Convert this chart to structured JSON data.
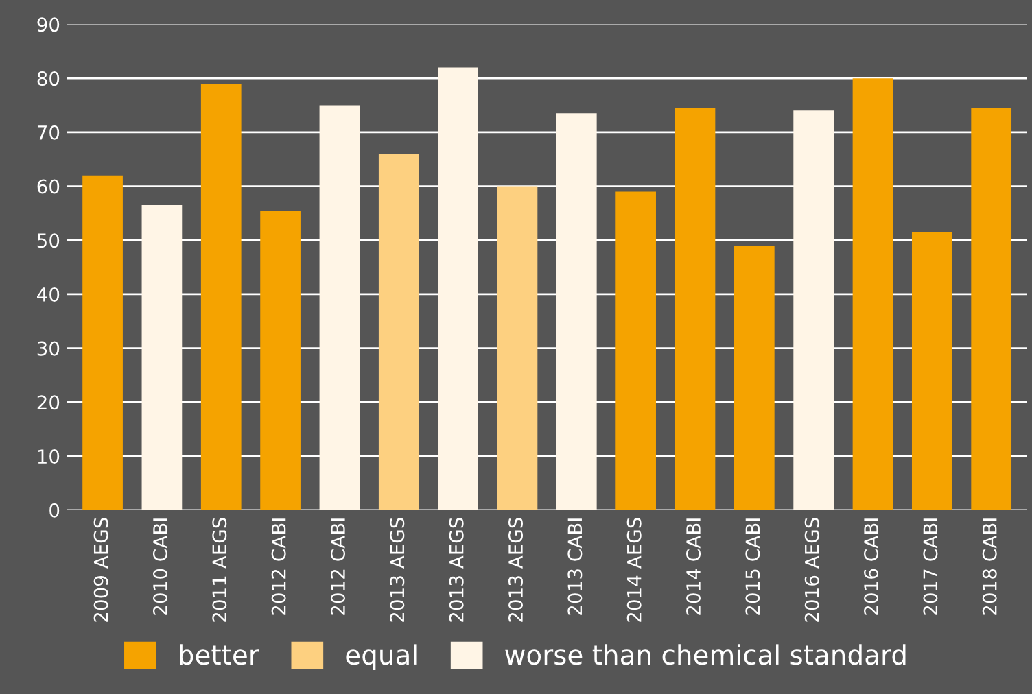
{
  "chart_data": {
    "type": "bar",
    "categories": [
      "2009 AEGS",
      "2010 CABI",
      "2011 AEGS",
      "2012 CABI",
      "2012 CABI",
      "2013 AEGS",
      "2013 AEGS",
      "2013 AEGS",
      "2013 CABI",
      "2014 AEGS",
      "2014 CABI",
      "2015 CABI",
      "2016 AEGS",
      "2016 CABI",
      "2017 CABI",
      "2018 CABI"
    ],
    "series": [
      {
        "name": "better",
        "color": "#f5a300",
        "values": [
          62,
          null,
          79,
          55.5,
          null,
          null,
          null,
          null,
          null,
          59,
          74.5,
          49,
          null,
          80,
          51.5,
          74.5
        ]
      },
      {
        "name": "equal",
        "color": "#fdd080",
        "values": [
          null,
          null,
          null,
          null,
          null,
          66,
          null,
          60,
          null,
          null,
          null,
          null,
          null,
          null,
          null,
          null
        ]
      },
      {
        "name": "worse than chemical standard",
        "color": "#fff5e6",
        "values": [
          null,
          56.5,
          null,
          null,
          75,
          null,
          82,
          null,
          73.5,
          null,
          null,
          null,
          74,
          null,
          null,
          null
        ]
      }
    ],
    "ylim": [
      0,
      90
    ],
    "yticks": [
      0,
      10,
      20,
      30,
      40,
      50,
      60,
      70,
      80,
      90
    ],
    "grid": "y",
    "legend": "bottom"
  }
}
